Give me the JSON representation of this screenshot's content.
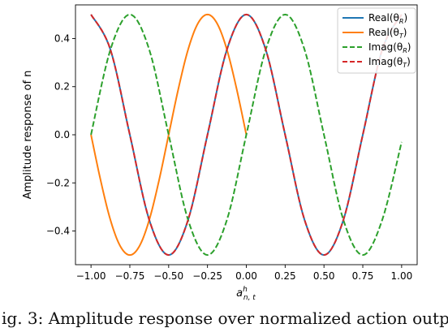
{
  "chart_data": {
    "type": "line",
    "xlabel": "a^h_{n,t}",
    "xlabel_main": "a",
    "xlabel_sup": "h",
    "xlabel_sub": "n, t",
    "ylabel": "Amplitude response of n",
    "xlim": [
      -1.1,
      1.1
    ],
    "ylim": [
      -0.54,
      0.54
    ],
    "xticks": [
      -1.0,
      -0.75,
      -0.5,
      -0.25,
      0.0,
      0.25,
      0.5,
      0.75,
      1.0
    ],
    "xtick_labels": [
      "−1.00",
      "−0.75",
      "−0.50",
      "−0.25",
      "0.00",
      "0.25",
      "0.50",
      "0.75",
      "1.00"
    ],
    "yticks": [
      -0.4,
      -0.2,
      0.0,
      0.2,
      0.4
    ],
    "ytick_labels": [
      "−0.4",
      "−0.2",
      "0.0",
      "0.2",
      "0.4"
    ],
    "grid": false,
    "legend_position": "top-right",
    "series": [
      {
        "name": "Real(θR)",
        "legend_main": "Real(θ",
        "legend_sub": "R",
        "legend_tail": ")",
        "color": "#1f77b4",
        "style": "solid",
        "segments": [
          {
            "x": [
              -1.0,
              -0.875,
              -0.75,
              -0.625,
              -0.5,
              -0.375,
              -0.25,
              -0.125,
              0.0,
              0.125,
              0.25,
              0.375,
              0.5,
              0.625,
              0.75,
              0.875,
              1.0
            ],
            "y": [
              0.5,
              0.354,
              0.0,
              -0.354,
              -0.5,
              -0.354,
              0.0,
              0.354,
              0.5,
              0.354,
              0.0,
              -0.354,
              -0.5,
              -0.354,
              0.0,
              0.354,
              0.5
            ]
          }
        ]
      },
      {
        "name": "Real(θT)",
        "legend_main": "Real(θ",
        "legend_sub": "T",
        "legend_tail": ")",
        "color": "#ff7f0e",
        "style": "solid",
        "segments": [
          {
            "x": [
              -1.0,
              -0.9375,
              -0.875,
              -0.8125,
              -0.75,
              -0.6875,
              -0.625,
              -0.5625,
              -0.5,
              -0.4375,
              -0.375,
              -0.3125,
              -0.25,
              -0.1875,
              -0.125,
              -0.0625,
              0.0
            ],
            "y": [
              0.0,
              -0.191,
              -0.354,
              -0.462,
              -0.5,
              -0.462,
              -0.354,
              -0.191,
              0.0,
              0.191,
              0.354,
              0.462,
              0.5,
              0.462,
              0.354,
              0.191,
              0.0
            ]
          }
        ]
      },
      {
        "name": "Imag(θR)",
        "legend_main": "Imag(θ",
        "legend_sub": "R",
        "legend_tail": ")",
        "color": "#2ca02c",
        "style": "dashed",
        "segments": [
          {
            "x": [
              -1.0,
              -0.875,
              -0.75,
              -0.625,
              -0.5,
              -0.375,
              -0.25,
              -0.125,
              0.0,
              0.125,
              0.25,
              0.375,
              0.5,
              0.625,
              0.75,
              0.875,
              1.0
            ],
            "y": [
              0.0,
              0.354,
              0.5,
              0.354,
              0.0,
              -0.354,
              -0.5,
              -0.354,
              0.0,
              0.354,
              0.5,
              0.354,
              0.0,
              -0.354,
              -0.5,
              -0.354,
              -0.03
            ]
          }
        ]
      },
      {
        "name": "Imag(θT)",
        "legend_main": "Imag(θ",
        "legend_sub": "T",
        "legend_tail": ")",
        "color": "#d62728",
        "style": "dashed",
        "segments": [
          {
            "x": [
              -1.0,
              -0.875,
              -0.75,
              -0.625,
              -0.5,
              -0.375,
              -0.25,
              -0.125,
              0.0,
              0.125,
              0.25,
              0.375,
              0.5,
              0.625,
              0.75,
              0.875,
              1.0
            ],
            "y": [
              0.5,
              0.354,
              0.0,
              -0.354,
              -0.5,
              -0.354,
              0.0,
              0.354,
              0.5,
              0.354,
              0.0,
              -0.354,
              -0.5,
              -0.354,
              0.0,
              0.354,
              0.5
            ]
          }
        ]
      }
    ]
  },
  "caption": "ig. 3: Amplitude response over normalized action outp"
}
